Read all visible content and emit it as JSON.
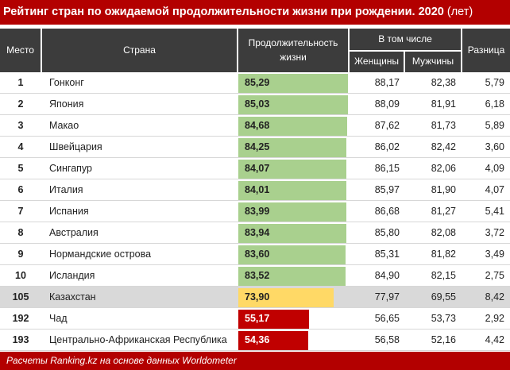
{
  "title": "Рейтинг стран по ожидаемой продолжительности жизни при рождении. 2020",
  "title_unit": "(лет)",
  "header": {
    "place": "Место",
    "country": "Страна",
    "life": "Продолжительность жизни",
    "including": "В том числе",
    "women": "Женщины",
    "men": "Мужчины",
    "diff": "Разница"
  },
  "colors": {
    "accent": "#b30000",
    "header_bg": "#3c3c3c",
    "bar_top": "#a9d08e",
    "bar_kz": "#ffd966",
    "bar_low": "#c00000"
  },
  "chart_data": {
    "type": "table",
    "columns": [
      "Место",
      "Страна",
      "Продолжительность жизни",
      "Женщины",
      "Мужчины",
      "Разница"
    ],
    "rows": [
      {
        "rank": "1",
        "country": "Гонконг",
        "life": "85,29",
        "life_value": 85.29,
        "women": "88,17",
        "men": "82,38",
        "diff": "5,79",
        "tier": "top"
      },
      {
        "rank": "2",
        "country": "Япония",
        "life": "85,03",
        "life_value": 85.03,
        "women": "88,09",
        "men": "81,91",
        "diff": "6,18",
        "tier": "top"
      },
      {
        "rank": "3",
        "country": "Макао",
        "life": "84,68",
        "life_value": 84.68,
        "women": "87,62",
        "men": "81,73",
        "diff": "5,89",
        "tier": "top"
      },
      {
        "rank": "4",
        "country": "Швейцария",
        "life": "84,25",
        "life_value": 84.25,
        "women": "86,02",
        "men": "82,42",
        "diff": "3,60",
        "tier": "top"
      },
      {
        "rank": "5",
        "country": "Сингапур",
        "life": "84,07",
        "life_value": 84.07,
        "women": "86,15",
        "men": "82,06",
        "diff": "4,09",
        "tier": "top"
      },
      {
        "rank": "6",
        "country": "Италия",
        "life": "84,01",
        "life_value": 84.01,
        "women": "85,97",
        "men": "81,90",
        "diff": "4,07",
        "tier": "top"
      },
      {
        "rank": "7",
        "country": "Испания",
        "life": "83,99",
        "life_value": 83.99,
        "women": "86,68",
        "men": "81,27",
        "diff": "5,41",
        "tier": "top"
      },
      {
        "rank": "8",
        "country": "Австралия",
        "life": "83,94",
        "life_value": 83.94,
        "women": "85,80",
        "men": "82,08",
        "diff": "3,72",
        "tier": "top"
      },
      {
        "rank": "9",
        "country": "Нормандские острова",
        "life": "83,60",
        "life_value": 83.6,
        "women": "85,31",
        "men": "81,82",
        "diff": "3,49",
        "tier": "top"
      },
      {
        "rank": "10",
        "country": "Исландия",
        "life": "83,52",
        "life_value": 83.52,
        "women": "84,90",
        "men": "82,15",
        "diff": "2,75",
        "tier": "top"
      },
      {
        "rank": "105",
        "country": "Казахстан",
        "life": "73,90",
        "life_value": 73.9,
        "women": "77,97",
        "men": "69,55",
        "diff": "8,42",
        "tier": "kz"
      },
      {
        "rank": "192",
        "country": "Чад",
        "life": "55,17",
        "life_value": 55.17,
        "women": "56,65",
        "men": "53,73",
        "diff": "2,92",
        "tier": "low"
      },
      {
        "rank": "193",
        "country": "Центрально-Африканская Республика",
        "life": "54,36",
        "life_value": 54.36,
        "women": "56,58",
        "men": "52,16",
        "diff": "4,42",
        "tier": "low"
      }
    ]
  },
  "footer": "Расчеты Ranking.kz на основе данных Worldometer"
}
